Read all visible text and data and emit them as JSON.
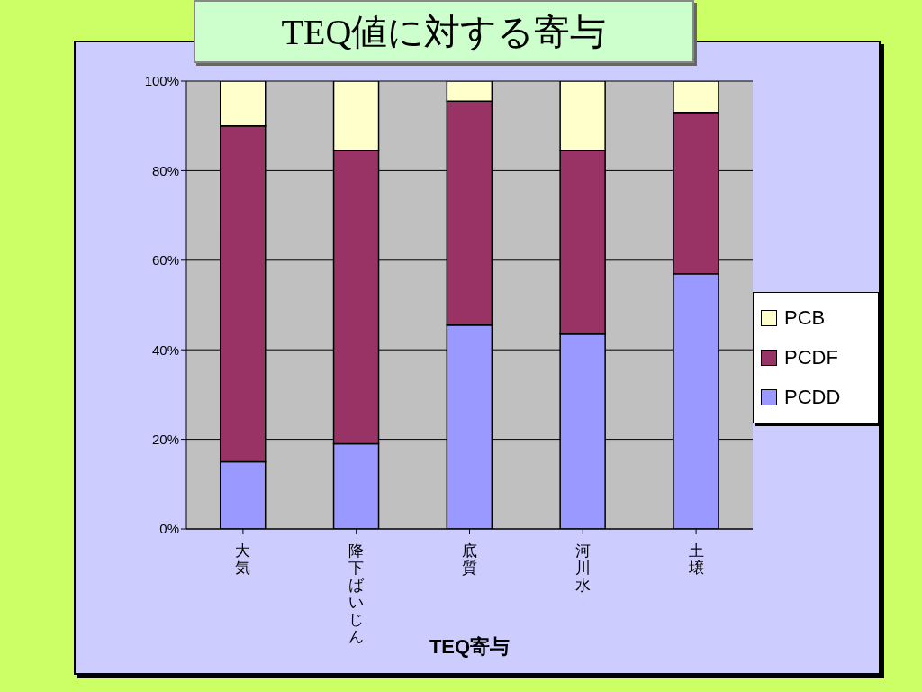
{
  "chart_data": {
    "type": "bar",
    "title": "TEQ値に対する寄与",
    "xlabel": "TEQ寄与",
    "categories": [
      "大気",
      "降下ばいじん",
      "底質",
      "河川水",
      "土壌"
    ],
    "stacked": true,
    "series": [
      {
        "name": "PCDD",
        "color": "#9999ff",
        "values": [
          15,
          19,
          45.5,
          43.5,
          57
        ]
      },
      {
        "name": "PCDF",
        "color": "#993366",
        "values": [
          75,
          65.5,
          50,
          41,
          36
        ]
      },
      {
        "name": "PCB",
        "color": "#ffffcc",
        "values": [
          10,
          15.5,
          4.5,
          15.5,
          7
        ]
      }
    ],
    "ylim": [
      0,
      100
    ],
    "yticks": [
      {
        "value": 0,
        "label": "0%"
      },
      {
        "value": 20,
        "label": "20%"
      },
      {
        "value": 40,
        "label": "40%"
      },
      {
        "value": 60,
        "label": "60%"
      },
      {
        "value": 80,
        "label": "80%"
      },
      {
        "value": 100,
        "label": "100%"
      }
    ],
    "grid": "y",
    "legend": "right"
  }
}
